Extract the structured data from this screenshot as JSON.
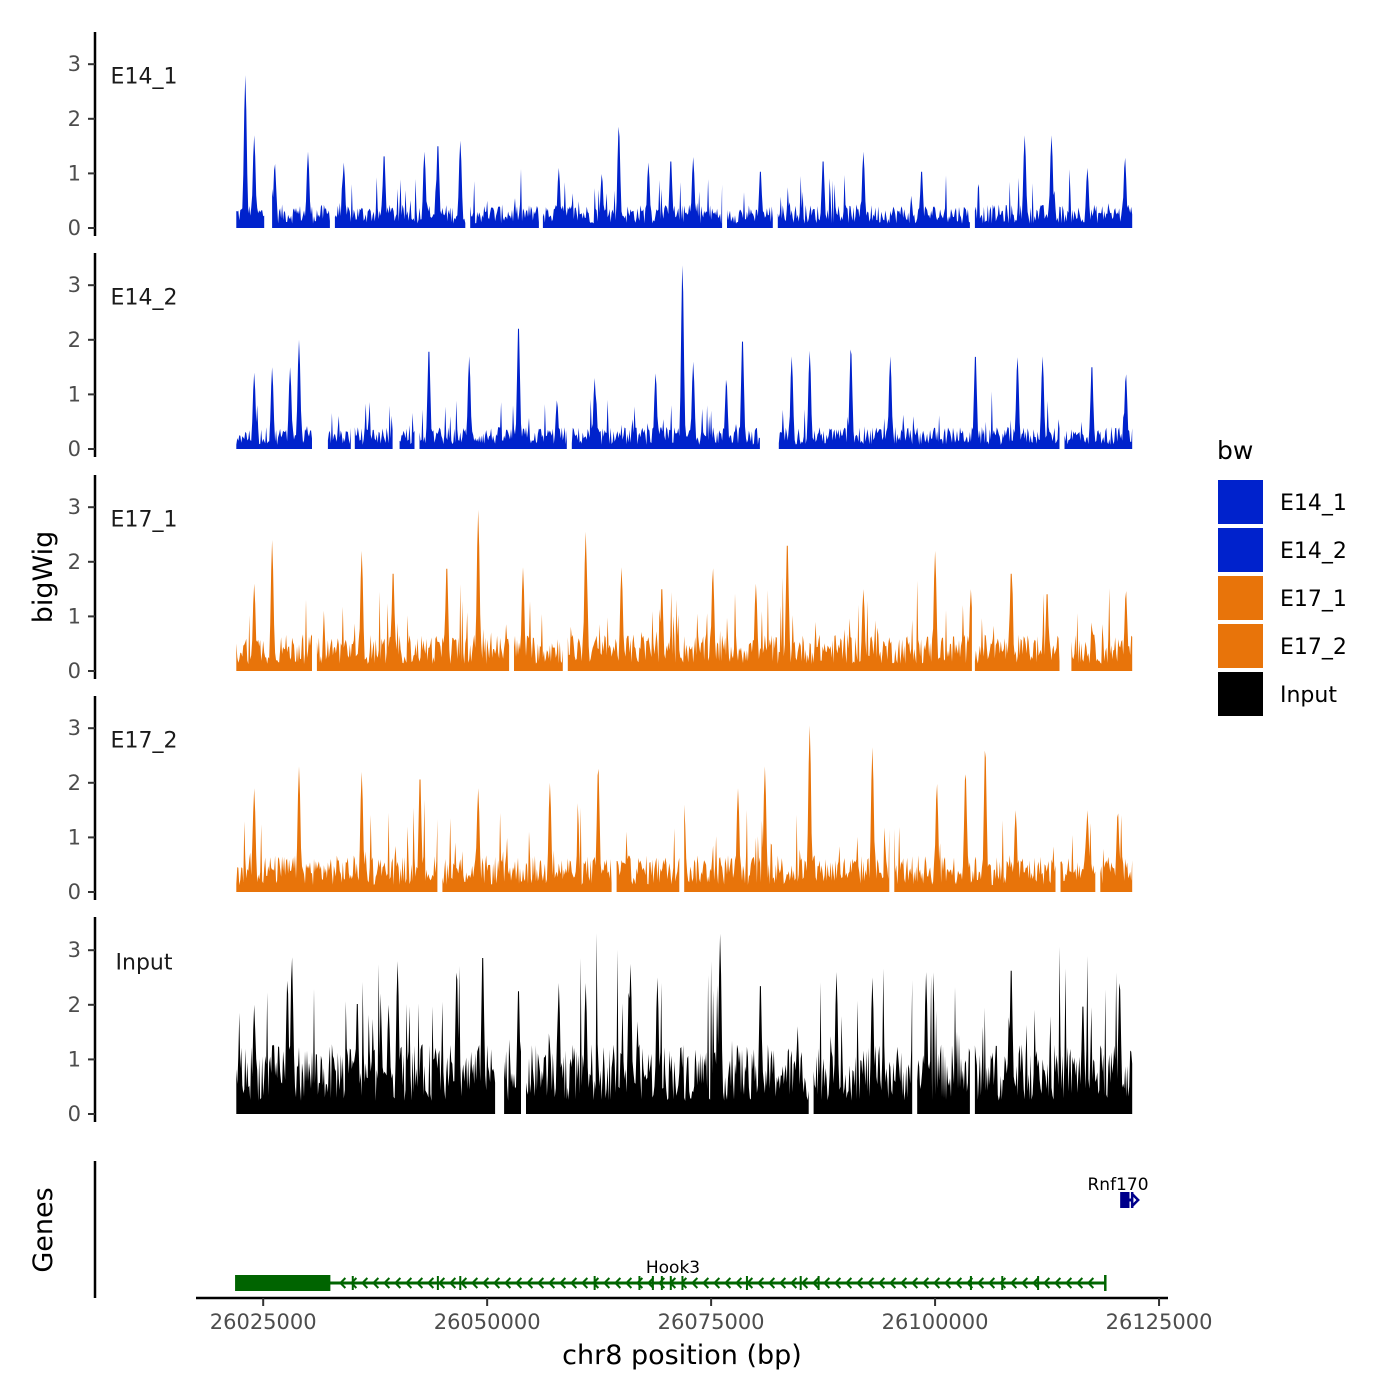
{
  "chart_data": {
    "type": "area",
    "y_axis_title": "bigWig",
    "x_axis_title": "chr8 position (bp)",
    "xlim": [
      26017500,
      26126000
    ],
    "x_ticks": [
      26025000,
      26050000,
      26075000,
      26100000,
      26125000
    ],
    "x_tick_labels": [
      "26025000",
      "26050000",
      "26075000",
      "26100000",
      "26125000"
    ],
    "ylim": [
      0,
      3.5
    ],
    "y_ticks": [
      0,
      1,
      2,
      3
    ],
    "y_tick_labels": [
      "0",
      "1",
      "2",
      "3"
    ],
    "data_range": [
      26022000,
      26122000
    ],
    "legend": {
      "title": "bw",
      "entries": [
        {
          "label": "E14_1",
          "color": "#0022CC"
        },
        {
          "label": "E14_2",
          "color": "#0022CC"
        },
        {
          "label": "E17_1",
          "color": "#E8740A"
        },
        {
          "label": "E17_2",
          "color": "#E8740A"
        },
        {
          "label": "Input",
          "color": "#000000"
        }
      ]
    },
    "series": [
      {
        "name": "E14_1",
        "color": "#0022CC",
        "baseline": 0.32,
        "peaks": [
          [
            26023000,
            2.8
          ],
          [
            26024000,
            1.7
          ],
          [
            26026300,
            1.2
          ],
          [
            26030000,
            1.4
          ],
          [
            26034000,
            1.2
          ],
          [
            26038500,
            1.4
          ],
          [
            26043000,
            1.4
          ],
          [
            26044500,
            1.6
          ],
          [
            26047000,
            1.6
          ],
          [
            26058000,
            1.1
          ],
          [
            26062800,
            1.0
          ],
          [
            26064700,
            1.9
          ],
          [
            26068000,
            1.2
          ],
          [
            26070500,
            1.3
          ],
          [
            26073000,
            1.3
          ],
          [
            26080500,
            1.1
          ],
          [
            26087500,
            1.3
          ],
          [
            26092000,
            1.4
          ],
          [
            26098500,
            1.1
          ],
          [
            26110000,
            1.7
          ],
          [
            26113000,
            1.7
          ],
          [
            26117000,
            1.1
          ],
          [
            26121200,
            1.3
          ]
        ],
        "gaps": [
          [
            26025200,
            26025900
          ],
          [
            26032500,
            26032900
          ],
          [
            26047600,
            26048000
          ],
          [
            26055800,
            26056200
          ],
          [
            26076300,
            26076700
          ],
          [
            26082000,
            26082400
          ],
          [
            26104000,
            26104400
          ]
        ]
      },
      {
        "name": "E14_2",
        "color": "#0022CC",
        "baseline": 0.3,
        "peaks": [
          [
            26024000,
            1.4
          ],
          [
            26026000,
            1.5
          ],
          [
            26028000,
            1.5
          ],
          [
            26029000,
            2.0
          ],
          [
            26043500,
            1.9
          ],
          [
            26048000,
            1.7
          ],
          [
            26053500,
            2.35
          ],
          [
            26057800,
            0.9
          ],
          [
            26062000,
            1.3
          ],
          [
            26068800,
            1.4
          ],
          [
            26071800,
            3.4
          ],
          [
            26073000,
            1.6
          ],
          [
            26076700,
            1.3
          ],
          [
            26078500,
            2.1
          ],
          [
            26084000,
            1.7
          ],
          [
            26086000,
            1.8
          ],
          [
            26090600,
            1.9
          ],
          [
            26095000,
            1.7
          ],
          [
            26104500,
            1.8
          ],
          [
            26109200,
            1.7
          ],
          [
            26112000,
            1.7
          ],
          [
            26117500,
            1.6
          ],
          [
            26121300,
            1.4
          ]
        ],
        "gaps": [
          [
            26030500,
            26032200
          ],
          [
            26034800,
            26035200
          ],
          [
            26039500,
            26040200
          ],
          [
            26042000,
            26042400
          ],
          [
            26059000,
            26059400
          ],
          [
            26080500,
            26082500
          ],
          [
            26114000,
            26114400
          ]
        ]
      },
      {
        "name": "E17_1",
        "color": "#E8740A",
        "baseline": 0.5,
        "peaks": [
          [
            26024000,
            1.6
          ],
          [
            26026000,
            2.4
          ],
          [
            26036000,
            2.2
          ],
          [
            26039500,
            1.9
          ],
          [
            26045500,
            2.0
          ],
          [
            26049000,
            2.95
          ],
          [
            26054000,
            1.9
          ],
          [
            26061000,
            2.55
          ],
          [
            26065000,
            1.9
          ],
          [
            26069500,
            1.6
          ],
          [
            26075200,
            1.9
          ],
          [
            26080000,
            1.6
          ],
          [
            26083500,
            2.45
          ],
          [
            26092000,
            1.5
          ],
          [
            26100000,
            2.2
          ],
          [
            26104000,
            1.5
          ],
          [
            26108500,
            1.9
          ],
          [
            26112500,
            1.5
          ],
          [
            26121300,
            1.5
          ]
        ],
        "gaps": [
          [
            26030500,
            26030900
          ],
          [
            26052500,
            26052900
          ],
          [
            26058500,
            26058900
          ],
          [
            26104200,
            26104400
          ],
          [
            26114000,
            26115200
          ]
        ]
      },
      {
        "name": "E17_2",
        "color": "#E8740A",
        "baseline": 0.5,
        "peaks": [
          [
            26024000,
            1.9
          ],
          [
            26029000,
            2.3
          ],
          [
            26036000,
            2.2
          ],
          [
            26042500,
            2.2
          ],
          [
            26049000,
            1.9
          ],
          [
            26057000,
            2.0
          ],
          [
            26062400,
            2.35
          ],
          [
            26072000,
            1.6
          ],
          [
            26078000,
            1.9
          ],
          [
            26081000,
            2.3
          ],
          [
            26086000,
            3.05
          ],
          [
            26093000,
            2.65
          ],
          [
            26100200,
            2.0
          ],
          [
            26103400,
            2.25
          ],
          [
            26105600,
            2.7
          ],
          [
            26109000,
            1.5
          ],
          [
            26117000,
            1.5
          ],
          [
            26120400,
            1.5
          ]
        ],
        "gaps": [
          [
            26044500,
            26044900
          ],
          [
            26064000,
            26064400
          ],
          [
            26071500,
            26071900
          ],
          [
            26095000,
            26095400
          ],
          [
            26113500,
            26113900
          ],
          [
            26118000,
            26118400
          ]
        ]
      },
      {
        "name": "Input",
        "color": "#000000",
        "baseline": 0.95,
        "peaks": [
          [
            26024000,
            2.0
          ],
          [
            26027700,
            2.5
          ],
          [
            26028200,
            2.9
          ],
          [
            26035500,
            2.15
          ],
          [
            26039000,
            2.0
          ],
          [
            26040000,
            2.8
          ],
          [
            26046600,
            2.7
          ],
          [
            26049500,
            3.05
          ],
          [
            26053500,
            2.4
          ],
          [
            26058000,
            2.4
          ],
          [
            26061000,
            2.4
          ],
          [
            26066000,
            2.75
          ],
          [
            26069000,
            2.5
          ],
          [
            26076000,
            3.3
          ],
          [
            26080500,
            2.5
          ],
          [
            26089000,
            2.6
          ],
          [
            26093000,
            2.5
          ],
          [
            26099000,
            2.6
          ],
          [
            26108500,
            2.8
          ],
          [
            26116500,
            2.1
          ],
          [
            26120600,
            2.5
          ]
        ],
        "gaps": [
          [
            26051000,
            26051800
          ],
          [
            26053800,
            26054300
          ],
          [
            26086000,
            26086400
          ],
          [
            26097500,
            26097900
          ],
          [
            26104000,
            26104400
          ]
        ]
      }
    ],
    "genes_track": {
      "label": "Genes",
      "genes": [
        {
          "name": "Hook3",
          "strand": "-",
          "start": 26022000,
          "end": 26119000,
          "color": "#006400",
          "thick": [
            [
              26022000,
              26032500
            ]
          ],
          "exons": [
            26035000,
            26044500,
            26047000,
            26062000,
            26067000,
            26068500,
            26069500,
            26070500,
            26071800,
            26079000,
            26085000,
            26087000,
            26104000,
            26107500,
            26111500
          ]
        },
        {
          "name": "Rnf170",
          "strand": "+",
          "start": 26120800,
          "end": 26122000,
          "color": "#00008B",
          "thick": [
            [
              26120900,
              26121700
            ]
          ],
          "exons": []
        }
      ]
    }
  }
}
